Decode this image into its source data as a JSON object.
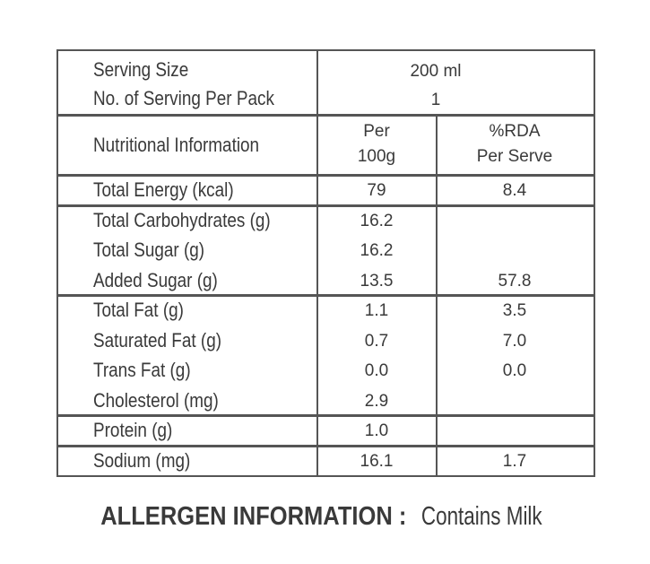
{
  "serving": {
    "size_label": "Serving Size",
    "size_value": "200 ml",
    "count_label": "No. of Serving Per Pack",
    "count_value": "1"
  },
  "header": {
    "name": "Nutritional Information",
    "per100g": [
      "Per",
      "100g"
    ],
    "rda": [
      "%RDA",
      "Per Serve"
    ]
  },
  "groups": [
    [
      {
        "name": "Total Energy (kcal)",
        "per100g": "79",
        "rda": "8.4"
      }
    ],
    [
      {
        "name": "Total Carbohydrates (g)",
        "per100g": "16.2",
        "rda": null
      },
      {
        "name": "Total Sugar (g)",
        "per100g": "16.2",
        "rda": null
      },
      {
        "name": "Added Sugar (g)",
        "per100g": "13.5",
        "rda": "57.8"
      }
    ],
    [
      {
        "name": "Total Fat (g)",
        "per100g": "1.1",
        "rda": "3.5"
      },
      {
        "name": "Saturated Fat (g)",
        "per100g": "0.7",
        "rda": "7.0"
      },
      {
        "name": "Trans Fat (g)",
        "per100g": "0.0",
        "rda": "0.0"
      },
      {
        "name": "Cholesterol (mg)",
        "per100g": "2.9",
        "rda": null
      }
    ],
    [
      {
        "name": "Protein (g)",
        "per100g": "1.0",
        "rda": null
      }
    ],
    [
      {
        "name": "Sodium (mg)",
        "per100g": "16.1",
        "rda": "1.7"
      }
    ]
  ],
  "allergen": {
    "label": "ALLERGEN INFORMATION :",
    "text": "Contains Milk"
  }
}
